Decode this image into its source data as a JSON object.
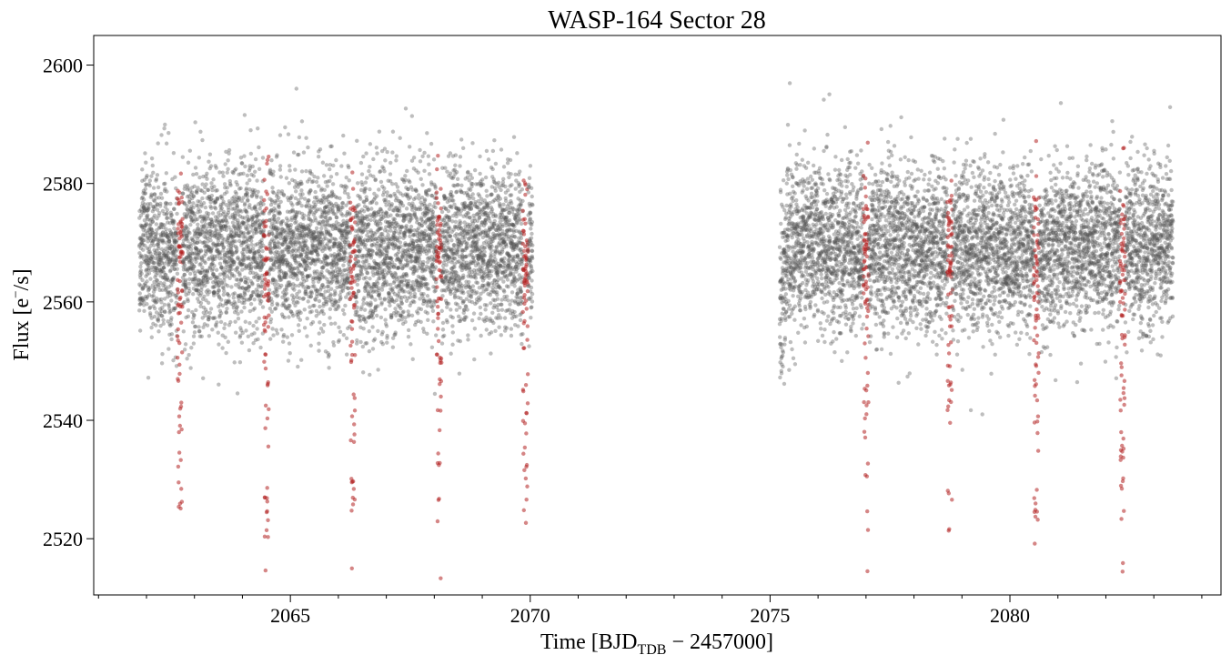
{
  "chart_data": {
    "type": "scatter",
    "title": "WASP-164 Sector 28",
    "xlabel": {
      "prefix": "Time [BJD",
      "subscript": "TDB",
      "suffix": " − 2457000]"
    },
    "ylabel": {
      "prefix": "Flux [e",
      "superscript": "−",
      "suffix": "/s]"
    },
    "xlim": [
      2060.9,
      2084.4
    ],
    "ylim": [
      2510.5,
      2605.0
    ],
    "x_major_ticks": [
      2065,
      2070,
      2075,
      2080
    ],
    "x_minor_step": 1,
    "y_major_ticks": [
      2520,
      2540,
      2560,
      2580,
      2600
    ],
    "grid": false,
    "series": [
      {
        "role": "out-of-transit",
        "color": "#555555",
        "segments": [
          {
            "start": 2061.85,
            "end": 2070.05
          },
          {
            "start": 2075.2,
            "end": 2083.4
          }
        ],
        "baseline": 2569,
        "scatter_sd": 7
      },
      {
        "role": "in-transit",
        "color": "#b22222",
        "transit_times": [
          2062.7,
          2064.5,
          2066.3,
          2068.1,
          2069.9,
          2077.0,
          2078.75,
          2080.55,
          2082.35
        ],
        "transit_depth": 35
      }
    ],
    "colors": {
      "out_of_transit": "#555555",
      "in_transit": "#b22222"
    }
  }
}
